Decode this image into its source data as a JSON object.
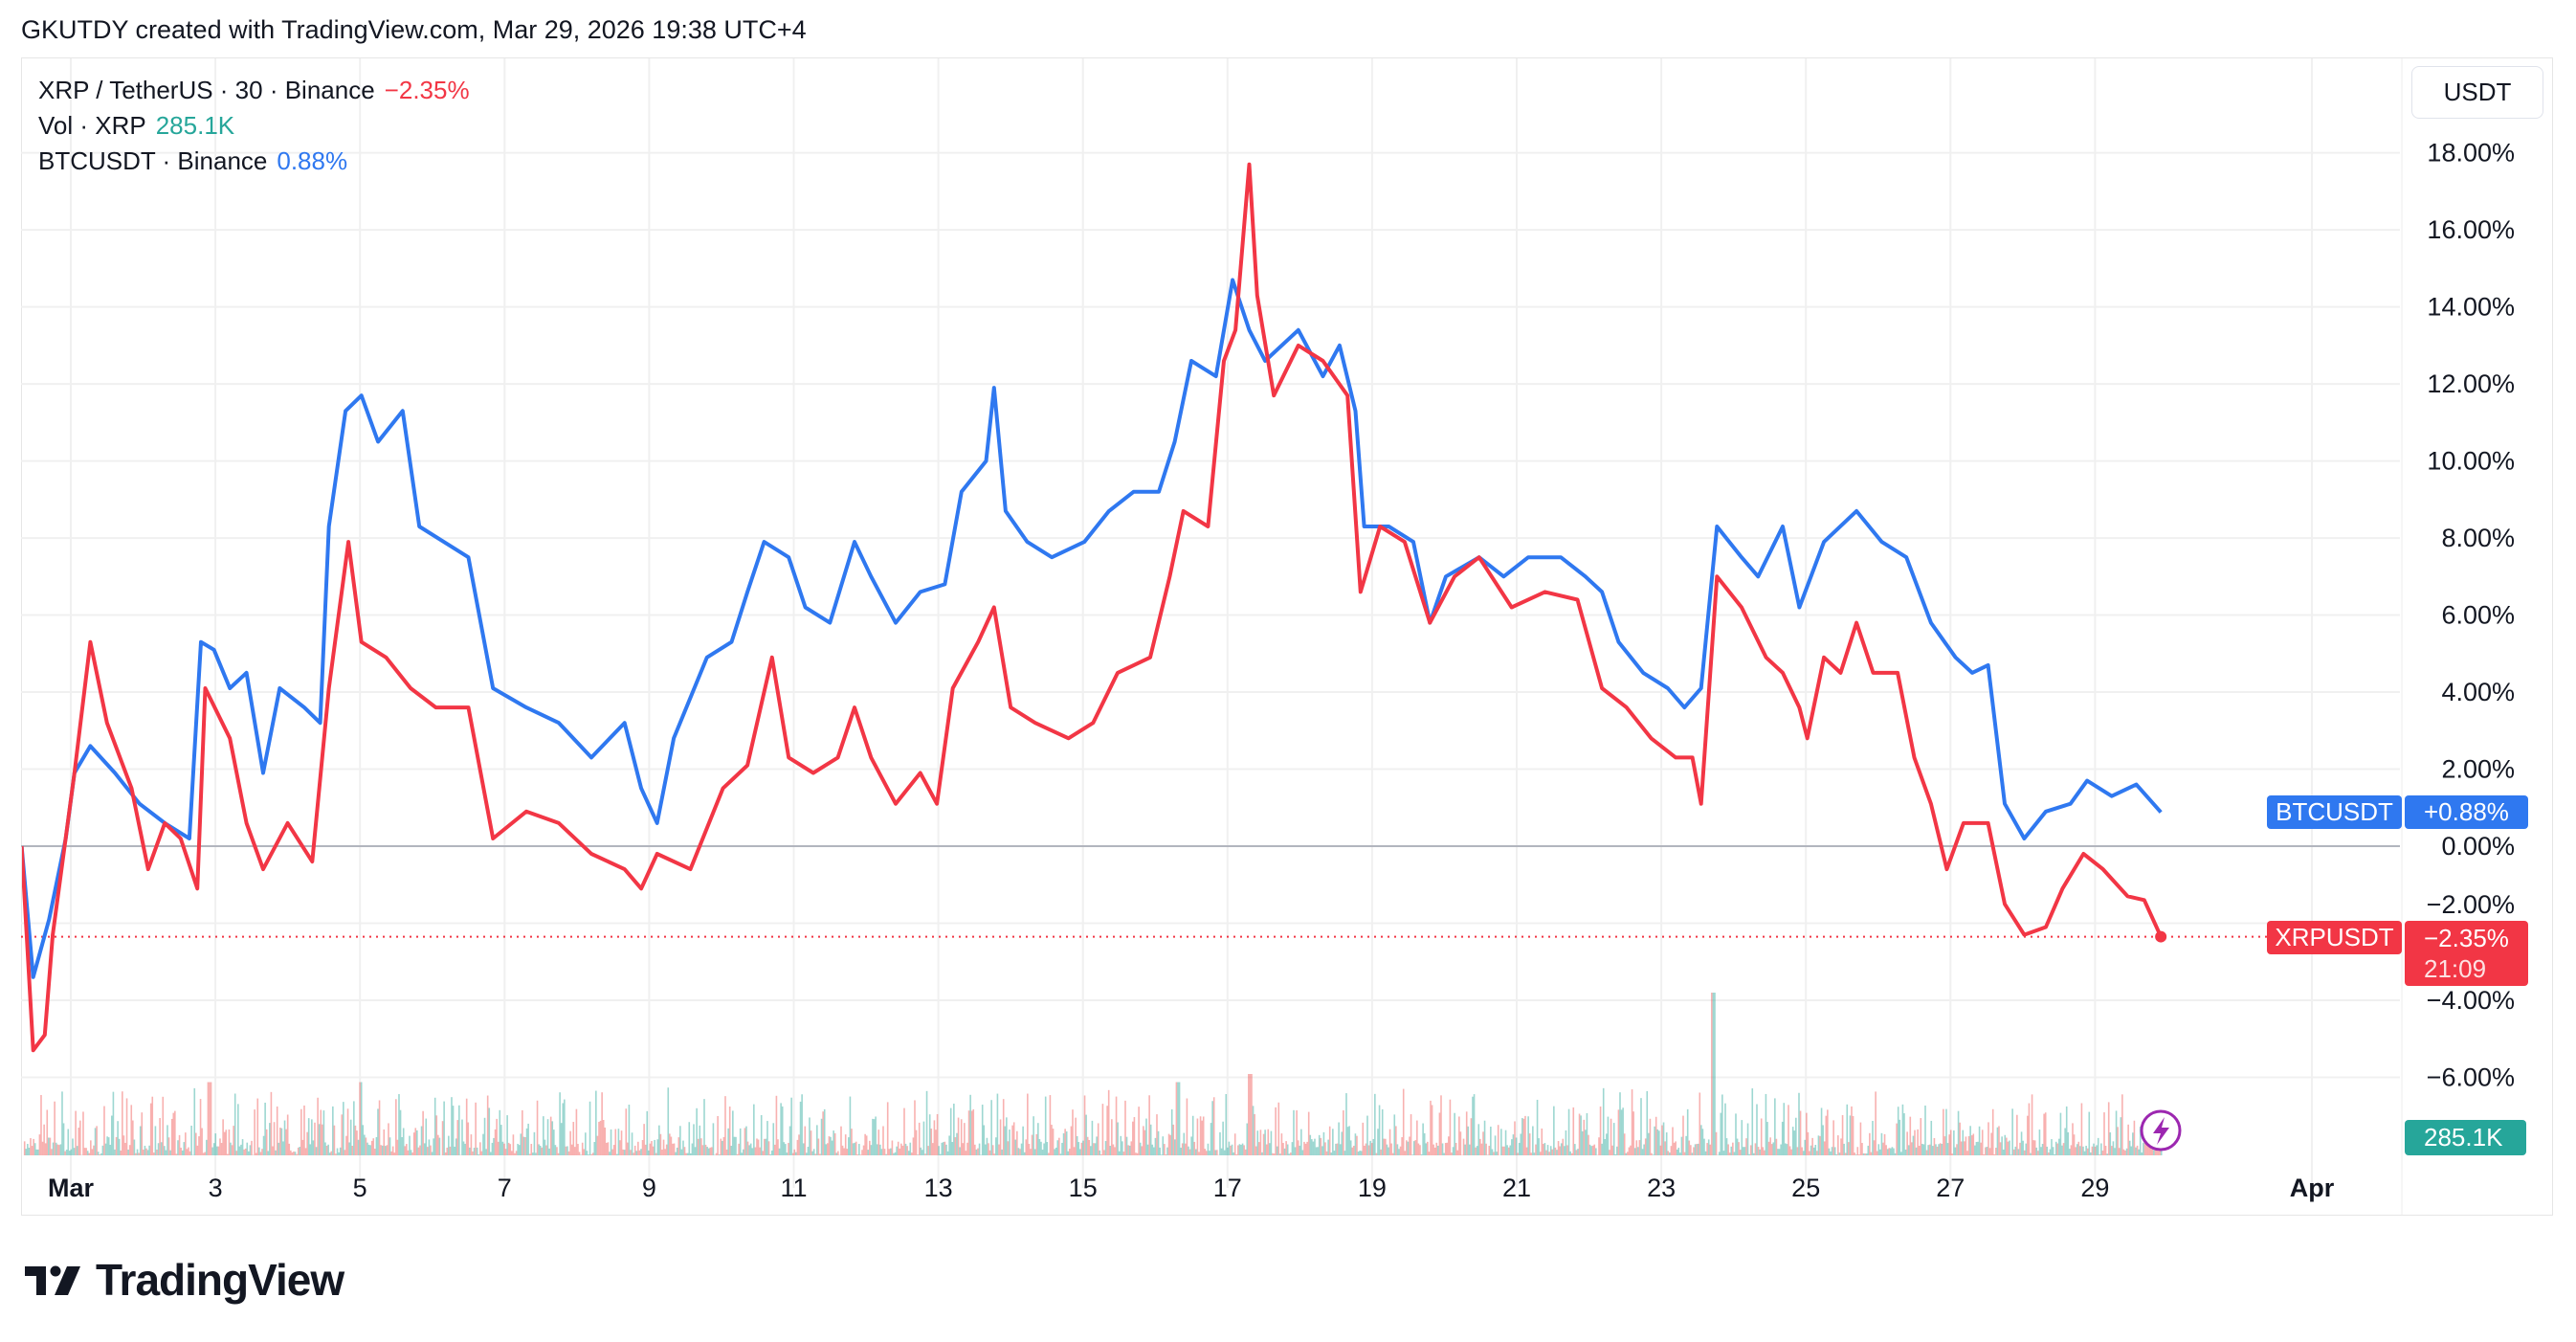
{
  "header": {
    "attribution": "GKUTDY created with TradingView.com, Mar 29, 2026 19:38 UTC+4"
  },
  "legend": {
    "main_symbol": "XRP / TetherUS · 30 · Binance",
    "main_change": "−2.35%",
    "vol_label": "Vol · XRP",
    "vol_value": "285.1K",
    "compare_symbol": "BTCUSDT · Binance",
    "compare_change": "0.88%"
  },
  "currency_button": "USDT",
  "tags": {
    "btc_name": "BTCUSDT",
    "btc_value": "+0.88%",
    "xrp_name": "XRPUSDT",
    "xrp_value": "−2.35%",
    "xrp_countdown": "21:09",
    "volume_value": "285.1K"
  },
  "footer": {
    "brand": "TradingView"
  },
  "colors": {
    "xrp": "#f23645",
    "btc": "#2f78f0",
    "vol_up": "#26a69a",
    "vol_down": "#ef5350",
    "grid": "#f0f0f0"
  },
  "chart_data": {
    "type": "line",
    "title": "XRP / TetherUS · 30 · Binance",
    "xlabel": "",
    "ylabel": "% change",
    "x_unit": "day of March 2026",
    "xlim": [
      0.32,
      32.5
    ],
    "ylim": [
      -7.7,
      19.5
    ],
    "grid": true,
    "legend_placement": "top-left",
    "x_ticks": [
      {
        "day": 1,
        "label": "Mar",
        "bold": true
      },
      {
        "day": 3,
        "label": "3"
      },
      {
        "day": 5,
        "label": "5"
      },
      {
        "day": 7,
        "label": "7"
      },
      {
        "day": 9,
        "label": "9"
      },
      {
        "day": 11,
        "label": "11"
      },
      {
        "day": 13,
        "label": "13"
      },
      {
        "day": 15,
        "label": "15"
      },
      {
        "day": 17,
        "label": "17"
      },
      {
        "day": 19,
        "label": "19"
      },
      {
        "day": 21,
        "label": "21"
      },
      {
        "day": 23,
        "label": "23"
      },
      {
        "day": 25,
        "label": "25"
      },
      {
        "day": 27,
        "label": "27"
      },
      {
        "day": 29,
        "label": "29"
      },
      {
        "day": 32,
        "label": "Apr",
        "bold": true
      }
    ],
    "y_ticks": [
      {
        "value": 18,
        "label": "18.00%"
      },
      {
        "value": 16,
        "label": "16.00%"
      },
      {
        "value": 14,
        "label": "14.00%"
      },
      {
        "value": 12,
        "label": "12.00%"
      },
      {
        "value": 10,
        "label": "10.00%"
      },
      {
        "value": 8,
        "label": "8.00%"
      },
      {
        "value": 6,
        "label": "6.00%"
      },
      {
        "value": 4,
        "label": "4.00%"
      },
      {
        "value": 2,
        "label": "2.00%"
      },
      {
        "value": 0,
        "label": "0.00%"
      },
      {
        "value": -2,
        "label": "−2.00%"
      },
      {
        "value": -4,
        "label": "−4.00%"
      },
      {
        "value": -6,
        "label": "−6.00%"
      }
    ],
    "series": [
      {
        "name": "BTCUSDT",
        "color": "#2f78f0",
        "last": 0.88,
        "points": [
          [
            0.32,
            0
          ],
          [
            0.48,
            -3.4
          ],
          [
            0.7,
            -1.9
          ],
          [
            0.93,
            0.2
          ],
          [
            1.05,
            1.9
          ],
          [
            1.27,
            2.6
          ],
          [
            1.61,
            1.9
          ],
          [
            1.95,
            1.1
          ],
          [
            2.3,
            0.6
          ],
          [
            2.64,
            0.2
          ],
          [
            2.8,
            5.3
          ],
          [
            2.98,
            5.1
          ],
          [
            3.2,
            4.1
          ],
          [
            3.43,
            4.5
          ],
          [
            3.66,
            1.9
          ],
          [
            3.89,
            4.1
          ],
          [
            4.23,
            3.6
          ],
          [
            4.45,
            3.2
          ],
          [
            4.57,
            8.3
          ],
          [
            4.8,
            11.3
          ],
          [
            5.02,
            11.7
          ],
          [
            5.25,
            10.5
          ],
          [
            5.59,
            11.3
          ],
          [
            5.82,
            8.3
          ],
          [
            6.16,
            7.9
          ],
          [
            6.5,
            7.5
          ],
          [
            6.84,
            4.1
          ],
          [
            7.3,
            3.6
          ],
          [
            7.75,
            3.2
          ],
          [
            8.2,
            2.3
          ],
          [
            8.66,
            3.2
          ],
          [
            8.89,
            1.5
          ],
          [
            9.11,
            0.6
          ],
          [
            9.34,
            2.8
          ],
          [
            9.8,
            4.9
          ],
          [
            10.14,
            5.3
          ],
          [
            10.36,
            6.6
          ],
          [
            10.59,
            7.9
          ],
          [
            10.93,
            7.5
          ],
          [
            11.16,
            6.2
          ],
          [
            11.5,
            5.8
          ],
          [
            11.84,
            7.9
          ],
          [
            12.07,
            7.0
          ],
          [
            12.41,
            5.8
          ],
          [
            12.75,
            6.6
          ],
          [
            13.09,
            6.8
          ],
          [
            13.32,
            9.2
          ],
          [
            13.66,
            10.0
          ],
          [
            13.77,
            11.9
          ],
          [
            13.93,
            8.7
          ],
          [
            14.23,
            7.9
          ],
          [
            14.57,
            7.5
          ],
          [
            15.02,
            7.9
          ],
          [
            15.36,
            8.7
          ],
          [
            15.7,
            9.2
          ],
          [
            16.05,
            9.2
          ],
          [
            16.27,
            10.5
          ],
          [
            16.5,
            12.6
          ],
          [
            16.84,
            12.2
          ],
          [
            17.07,
            14.7
          ],
          [
            17.3,
            13.4
          ],
          [
            17.52,
            12.6
          ],
          [
            17.98,
            13.4
          ],
          [
            18.32,
            12.2
          ],
          [
            18.55,
            13.0
          ],
          [
            18.77,
            11.3
          ],
          [
            18.89,
            8.3
          ],
          [
            19.23,
            8.3
          ],
          [
            19.57,
            7.9
          ],
          [
            19.8,
            5.8
          ],
          [
            20.02,
            7.0
          ],
          [
            20.48,
            7.5
          ],
          [
            20.82,
            7.0
          ],
          [
            21.16,
            7.5
          ],
          [
            21.61,
            7.5
          ],
          [
            21.95,
            7.0
          ],
          [
            22.18,
            6.6
          ],
          [
            22.41,
            5.3
          ],
          [
            22.75,
            4.5
          ],
          [
            23.09,
            4.1
          ],
          [
            23.32,
            3.6
          ],
          [
            23.55,
            4.1
          ],
          [
            23.77,
            8.3
          ],
          [
            24.11,
            7.5
          ],
          [
            24.34,
            7.0
          ],
          [
            24.68,
            8.3
          ],
          [
            24.91,
            6.2
          ],
          [
            25.25,
            7.9
          ],
          [
            25.7,
            8.7
          ],
          [
            26.05,
            7.9
          ],
          [
            26.39,
            7.5
          ],
          [
            26.73,
            5.8
          ],
          [
            27.07,
            4.9
          ],
          [
            27.3,
            4.5
          ],
          [
            27.52,
            4.7
          ],
          [
            27.75,
            1.1
          ],
          [
            28.02,
            0.2
          ],
          [
            28.32,
            0.9
          ],
          [
            28.66,
            1.1
          ],
          [
            28.89,
            1.7
          ],
          [
            29.23,
            1.3
          ],
          [
            29.57,
            1.6
          ],
          [
            29.91,
            0.88
          ]
        ]
      },
      {
        "name": "XRPUSDT",
        "color": "#f23645",
        "last": -2.35,
        "points": [
          [
            0.32,
            0
          ],
          [
            0.48,
            -5.3
          ],
          [
            0.64,
            -4.9
          ],
          [
            0.75,
            -2.3
          ],
          [
            1.05,
            1.9
          ],
          [
            1.27,
            5.3
          ],
          [
            1.5,
            3.2
          ],
          [
            1.84,
            1.5
          ],
          [
            2.07,
            -0.6
          ],
          [
            2.3,
            0.6
          ],
          [
            2.52,
            0.2
          ],
          [
            2.75,
            -1.1
          ],
          [
            2.86,
            4.1
          ],
          [
            3.2,
            2.8
          ],
          [
            3.43,
            0.6
          ],
          [
            3.66,
            -0.6
          ],
          [
            4.0,
            0.6
          ],
          [
            4.34,
            -0.4
          ],
          [
            4.57,
            4.1
          ],
          [
            4.84,
            7.9
          ],
          [
            5.02,
            5.3
          ],
          [
            5.36,
            4.9
          ],
          [
            5.7,
            4.1
          ],
          [
            6.05,
            3.6
          ],
          [
            6.5,
            3.6
          ],
          [
            6.84,
            0.2
          ],
          [
            7.3,
            0.9
          ],
          [
            7.75,
            0.6
          ],
          [
            8.2,
            -0.2
          ],
          [
            8.66,
            -0.6
          ],
          [
            8.89,
            -1.1
          ],
          [
            9.11,
            -0.2
          ],
          [
            9.57,
            -0.6
          ],
          [
            10.02,
            1.5
          ],
          [
            10.36,
            2.1
          ],
          [
            10.7,
            4.9
          ],
          [
            10.93,
            2.3
          ],
          [
            11.27,
            1.9
          ],
          [
            11.61,
            2.3
          ],
          [
            11.84,
            3.6
          ],
          [
            12.07,
            2.3
          ],
          [
            12.41,
            1.1
          ],
          [
            12.75,
            1.9
          ],
          [
            12.98,
            1.1
          ],
          [
            13.2,
            4.1
          ],
          [
            13.55,
            5.3
          ],
          [
            13.77,
            6.2
          ],
          [
            14.0,
            3.6
          ],
          [
            14.34,
            3.2
          ],
          [
            14.8,
            2.8
          ],
          [
            15.14,
            3.2
          ],
          [
            15.48,
            4.5
          ],
          [
            15.93,
            4.9
          ],
          [
            16.2,
            7.0
          ],
          [
            16.39,
            8.7
          ],
          [
            16.73,
            8.3
          ],
          [
            16.95,
            12.6
          ],
          [
            17.11,
            13.4
          ],
          [
            17.3,
            17.7
          ],
          [
            17.41,
            14.3
          ],
          [
            17.64,
            11.7
          ],
          [
            17.98,
            13.0
          ],
          [
            18.32,
            12.6
          ],
          [
            18.66,
            11.7
          ],
          [
            18.84,
            6.6
          ],
          [
            19.11,
            8.3
          ],
          [
            19.45,
            7.9
          ],
          [
            19.8,
            5.8
          ],
          [
            20.14,
            7.0
          ],
          [
            20.48,
            7.5
          ],
          [
            20.93,
            6.2
          ],
          [
            21.39,
            6.6
          ],
          [
            21.84,
            6.4
          ],
          [
            22.18,
            4.1
          ],
          [
            22.52,
            3.6
          ],
          [
            22.86,
            2.8
          ],
          [
            23.2,
            2.3
          ],
          [
            23.43,
            2.3
          ],
          [
            23.55,
            1.1
          ],
          [
            23.77,
            7.0
          ],
          [
            24.11,
            6.2
          ],
          [
            24.45,
            4.9
          ],
          [
            24.68,
            4.5
          ],
          [
            24.91,
            3.6
          ],
          [
            25.02,
            2.8
          ],
          [
            25.25,
            4.9
          ],
          [
            25.48,
            4.5
          ],
          [
            25.7,
            5.8
          ],
          [
            25.93,
            4.5
          ],
          [
            26.27,
            4.5
          ],
          [
            26.5,
            2.3
          ],
          [
            26.73,
            1.1
          ],
          [
            26.95,
            -0.6
          ],
          [
            27.18,
            0.6
          ],
          [
            27.52,
            0.6
          ],
          [
            27.75,
            -1.5
          ],
          [
            28.02,
            -2.3
          ],
          [
            28.32,
            -2.1
          ],
          [
            28.55,
            -1.1
          ],
          [
            28.84,
            -0.2
          ],
          [
            29.11,
            -0.6
          ],
          [
            29.45,
            -1.3
          ],
          [
            29.68,
            -1.4
          ],
          [
            29.91,
            -2.35
          ]
        ]
      }
    ],
    "volume": {
      "name": "Vol · XRP",
      "last": "285.1K",
      "spike_days": [
        [
          23.7,
          1.0
        ],
        [
          17.3,
          0.5
        ],
        [
          16.3,
          0.45
        ],
        [
          2.9,
          0.45
        ],
        [
          5.0,
          0.45
        ]
      ]
    }
  }
}
